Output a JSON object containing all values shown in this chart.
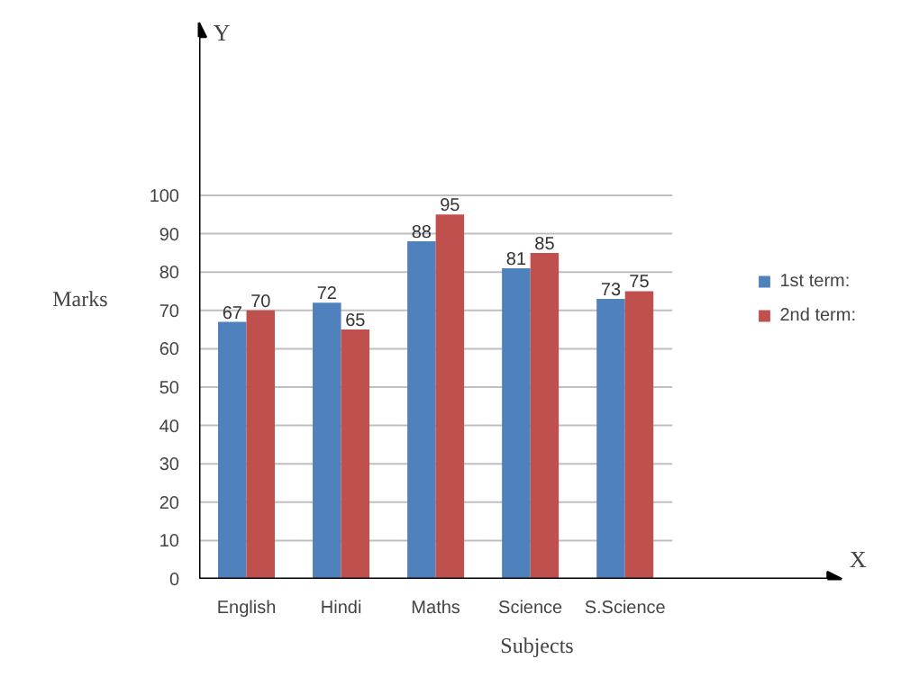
{
  "chart_data": {
    "type": "bar",
    "xlabel": "Subjects",
    "ylabel": "Marks",
    "categories": [
      "English",
      "Hindi",
      "Maths",
      "Science",
      "S.Science"
    ],
    "series": [
      {
        "name": "1st term:",
        "color": "#4f81bd",
        "values": [
          67,
          72,
          88,
          81,
          73
        ]
      },
      {
        "name": "2nd term:",
        "color": "#c0504d",
        "values": [
          70,
          65,
          95,
          85,
          75
        ]
      }
    ],
    "ylim": [
      0,
      146
    ],
    "yticks": [
      0,
      10,
      20,
      30,
      40,
      50,
      60,
      70,
      80,
      90,
      100
    ],
    "grid": "y",
    "legend": "right",
    "data_labels": true,
    "annotations": [
      "Y",
      "X"
    ]
  }
}
